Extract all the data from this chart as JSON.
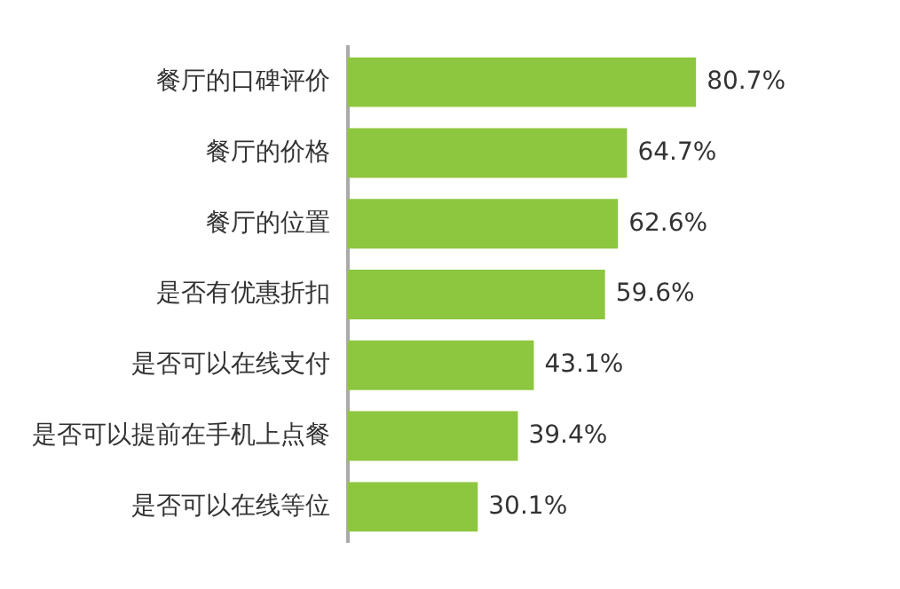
{
  "chart_data": {
    "type": "bar",
    "orientation": "horizontal",
    "categories": [
      "餐厅的口碑评价",
      "餐厅的价格",
      "餐厅的位置",
      "是否有优惠折扣",
      "是否可以在线支付",
      "是否可以提前在手机上点餐",
      "是否可以在线等位"
    ],
    "values": [
      80.7,
      64.7,
      62.6,
      59.6,
      43.1,
      39.4,
      30.1
    ],
    "value_labels": [
      "80.7%",
      "64.7%",
      "62.6%",
      "59.6%",
      "43.1%",
      "39.4%",
      "30.1%"
    ],
    "color": "#8dc63f"
  }
}
